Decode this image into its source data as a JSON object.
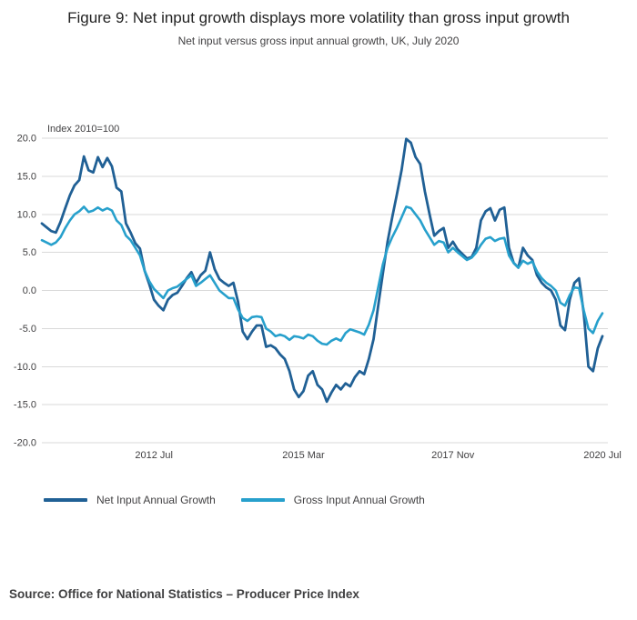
{
  "page": {
    "title": "Figure 9: Net input growth displays more volatility than gross input growth",
    "subtitle": "Net input versus gross input annual growth, UK, July 2020",
    "source": "Source: Office for National Statistics – Producer Price Index"
  },
  "chart_data": {
    "type": "line",
    "unit_label": "Index 2010=100",
    "ylim": [
      -20,
      20
    ],
    "y_ticks": [
      20,
      15,
      10,
      5,
      0,
      -5,
      -10,
      -15,
      -20
    ],
    "x_tick_labels": [
      "2012 Jul",
      "2015 Mar",
      "2017 Nov",
      "2020 Jul"
    ],
    "x_tick_positions": [
      24,
      56,
      88,
      120
    ],
    "grid": true,
    "legend_position": "bottom",
    "grid_color": "#d9d9d9",
    "x": [
      "2010-07",
      "2010-08",
      "2010-09",
      "2010-10",
      "2010-11",
      "2010-12",
      "2011-01",
      "2011-02",
      "2011-03",
      "2011-04",
      "2011-05",
      "2011-06",
      "2011-07",
      "2011-08",
      "2011-09",
      "2011-10",
      "2011-11",
      "2011-12",
      "2012-01",
      "2012-02",
      "2012-03",
      "2012-04",
      "2012-05",
      "2012-06",
      "2012-07",
      "2012-08",
      "2012-09",
      "2012-10",
      "2012-11",
      "2012-12",
      "2013-01",
      "2013-02",
      "2013-03",
      "2013-04",
      "2013-05",
      "2013-06",
      "2013-07",
      "2013-08",
      "2013-09",
      "2013-10",
      "2013-11",
      "2013-12",
      "2014-01",
      "2014-02",
      "2014-03",
      "2014-04",
      "2014-05",
      "2014-06",
      "2014-07",
      "2014-08",
      "2014-09",
      "2014-10",
      "2014-11",
      "2014-12",
      "2015-01",
      "2015-02",
      "2015-03",
      "2015-04",
      "2015-05",
      "2015-06",
      "2015-07",
      "2015-08",
      "2015-09",
      "2015-10",
      "2015-11",
      "2015-12",
      "2016-01",
      "2016-02",
      "2016-03",
      "2016-04",
      "2016-05",
      "2016-06",
      "2016-07",
      "2016-08",
      "2016-09",
      "2016-10",
      "2016-11",
      "2016-12",
      "2017-01",
      "2017-02",
      "2017-03",
      "2017-04",
      "2017-05",
      "2017-06",
      "2017-07",
      "2017-08",
      "2017-09",
      "2017-10",
      "2017-11",
      "2017-12",
      "2018-01",
      "2018-02",
      "2018-03",
      "2018-04",
      "2018-05",
      "2018-06",
      "2018-07",
      "2018-08",
      "2018-09",
      "2018-10",
      "2018-11",
      "2018-12",
      "2019-01",
      "2019-02",
      "2019-03",
      "2019-04",
      "2019-05",
      "2019-06",
      "2019-07",
      "2019-08",
      "2019-09",
      "2019-10",
      "2019-11",
      "2019-12",
      "2020-01",
      "2020-02",
      "2020-03",
      "2020-04",
      "2020-05",
      "2020-06",
      "2020-07"
    ],
    "series": [
      {
        "name": "Net Input Annual Growth",
        "color": "#206095",
        "width": 2.8,
        "values": [
          8.8,
          8.3,
          7.8,
          7.6,
          9.0,
          10.8,
          12.5,
          13.8,
          14.5,
          17.6,
          15.8,
          15.5,
          17.5,
          16.2,
          17.4,
          16.3,
          13.5,
          13.0,
          8.8,
          7.6,
          6.2,
          5.5,
          2.6,
          0.8,
          -1.2,
          -2.0,
          -2.6,
          -1.2,
          -0.6,
          -0.3,
          0.6,
          1.6,
          2.4,
          1.0,
          2.0,
          2.6,
          5.0,
          2.8,
          1.5,
          1.0,
          0.6,
          1.0,
          -1.5,
          -5.4,
          -6.4,
          -5.4,
          -4.6,
          -4.6,
          -7.4,
          -7.2,
          -7.6,
          -8.4,
          -9.0,
          -10.6,
          -13.0,
          -14.0,
          -13.2,
          -11.2,
          -10.6,
          -12.4,
          -13.0,
          -14.6,
          -13.4,
          -12.4,
          -13.0,
          -12.2,
          -12.6,
          -11.4,
          -10.6,
          -11.0,
          -9.0,
          -6.4,
          -2.0,
          2.2,
          6.4,
          9.6,
          12.6,
          15.8,
          19.9,
          19.4,
          17.5,
          16.6,
          13.0,
          10.0,
          7.2,
          7.8,
          8.2,
          5.6,
          6.4,
          5.4,
          4.8,
          4.2,
          4.4,
          5.6,
          9.2,
          10.4,
          10.8,
          9.2,
          10.6,
          10.9,
          5.6,
          3.6,
          3.0,
          5.6,
          4.6,
          4.0,
          2.0,
          1.0,
          0.4,
          0.0,
          -1.2,
          -4.6,
          -5.2,
          -1.2,
          1.0,
          1.6,
          -3.0,
          -10.0,
          -10.6,
          -7.6,
          -6.0
        ]
      },
      {
        "name": "Gross Input Annual Growth",
        "color": "#27a0cc",
        "width": 2.6,
        "values": [
          6.6,
          6.3,
          6.0,
          6.3,
          7.0,
          8.2,
          9.2,
          10.0,
          10.4,
          11.0,
          10.3,
          10.5,
          10.9,
          10.5,
          10.8,
          10.5,
          9.2,
          8.6,
          7.2,
          6.6,
          5.6,
          4.6,
          2.6,
          1.2,
          0.2,
          -0.4,
          -1.0,
          0.0,
          0.3,
          0.5,
          1.0,
          1.5,
          2.0,
          0.6,
          1.0,
          1.5,
          2.0,
          1.0,
          0.0,
          -0.5,
          -1.0,
          -1.0,
          -2.5,
          -3.6,
          -4.0,
          -3.5,
          -3.4,
          -3.5,
          -5.0,
          -5.4,
          -6.0,
          -5.8,
          -6.0,
          -6.5,
          -6.0,
          -6.1,
          -6.3,
          -5.8,
          -6.0,
          -6.6,
          -7.0,
          -7.1,
          -6.6,
          -6.3,
          -6.6,
          -5.6,
          -5.1,
          -5.3,
          -5.5,
          -5.8,
          -4.5,
          -2.6,
          0.4,
          3.4,
          5.6,
          7.0,
          8.2,
          9.6,
          11.0,
          10.8,
          10.0,
          9.2,
          8.0,
          7.0,
          6.0,
          6.5,
          6.3,
          5.0,
          5.6,
          5.0,
          4.5,
          4.0,
          4.3,
          5.0,
          6.0,
          6.8,
          7.0,
          6.5,
          6.8,
          6.9,
          4.6,
          3.6,
          3.0,
          3.9,
          3.5,
          3.8,
          2.5,
          1.6,
          1.0,
          0.6,
          0.0,
          -1.6,
          -2.0,
          -0.6,
          0.4,
          0.3,
          -2.6,
          -5.0,
          -5.6,
          -4.0,
          -3.0
        ]
      }
    ]
  }
}
